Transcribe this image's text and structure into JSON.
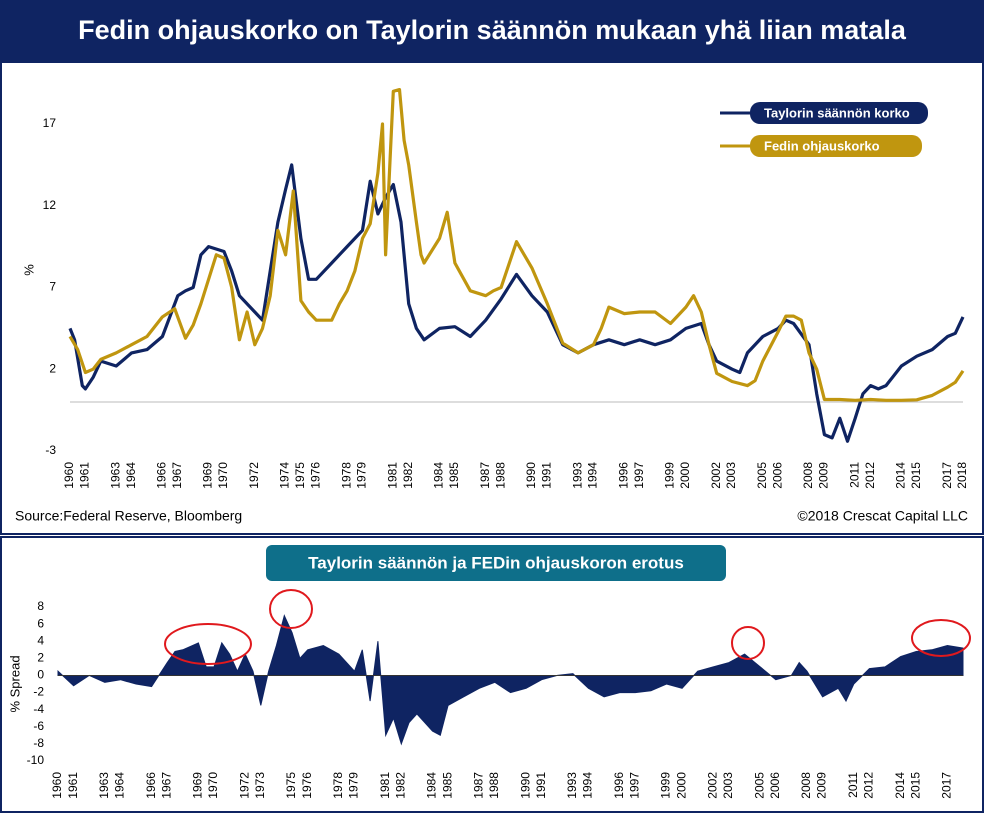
{
  "chart_data": [
    {
      "type": "line",
      "title": "Fedin ohjauskorko on Taylorin säännön mukaan yhä liian matala",
      "ylabel": "%",
      "source": "Source:Federal Reserve,  Bloomberg",
      "credit": "©2018 Crescat Capital LLC",
      "xlim": [
        1960,
        2018
      ],
      "xticks": [
        1960,
        1961,
        1963,
        1964,
        1966,
        1967,
        1969,
        1970,
        1972,
        1974,
        1975,
        1976,
        1978,
        1979,
        1981,
        1982,
        1984,
        1985,
        1987,
        1988,
        1990,
        1991,
        1993,
        1994,
        1996,
        1997,
        1999,
        2000,
        2002,
        2003,
        2005,
        2006,
        2008,
        2009,
        2011,
        2012,
        2014,
        2015,
        2017,
        2018
      ],
      "ylim": [
        -3,
        19.2
      ],
      "yticks": [
        -3,
        2,
        7,
        12,
        17
      ],
      "legend": "top-right",
      "series": [
        {
          "name": "Taylorin säännön korko",
          "color": "#0f2462",
          "x": [
            1960,
            1960.3,
            1960.8,
            1961,
            1961.5,
            1962,
            1963,
            1964,
            1965,
            1966,
            1967,
            1967.5,
            1968,
            1968.5,
            1969,
            1970,
            1970.5,
            1971,
            1972,
            1972.5,
            1973,
            1973.5,
            1974,
            1974.4,
            1975,
            1975.5,
            1976,
            1977,
            1978,
            1979,
            1979.5,
            1980,
            1980.5,
            1981,
            1981.5,
            1982,
            1982.5,
            1983,
            1984,
            1985,
            1986,
            1987,
            1988,
            1989,
            1990,
            1991,
            1992,
            1993,
            1994,
            1995,
            1996,
            1997,
            1998,
            1999,
            2000,
            2001,
            2001.5,
            2002,
            2003,
            2003.5,
            2004,
            2005,
            2006,
            2006.5,
            2007,
            2008,
            2008.5,
            2009,
            2009.5,
            2010,
            2010.5,
            2011,
            2011.5,
            2012,
            2012.5,
            2013,
            2014,
            2015,
            2016,
            2017,
            2017.5,
            2018
          ],
          "values": [
            4.5,
            3.8,
            1.0,
            0.8,
            1.5,
            2.5,
            2.2,
            3.0,
            3.2,
            4.0,
            6.5,
            6.8,
            7.0,
            9.0,
            9.5,
            9.2,
            8.0,
            6.5,
            5.5,
            5.0,
            8.0,
            11.0,
            13.0,
            14.5,
            10.0,
            7.5,
            7.5,
            8.5,
            9.5,
            10.5,
            13.5,
            11.5,
            12.5,
            13.3,
            11.0,
            6.0,
            4.5,
            3.8,
            4.5,
            4.6,
            4.0,
            5.0,
            6.3,
            7.8,
            6.5,
            5.5,
            3.5,
            3.0,
            3.5,
            3.8,
            3.5,
            3.8,
            3.5,
            3.8,
            4.5,
            4.8,
            3.5,
            2.5,
            2.0,
            1.8,
            3.0,
            4.0,
            4.5,
            5.0,
            4.8,
            3.5,
            0.5,
            -2.0,
            -2.2,
            -1.0,
            -2.4,
            -1.0,
            0.5,
            1.0,
            0.8,
            1.0,
            2.2,
            2.8,
            3.2,
            4.0,
            4.2,
            5.2
          ]
        },
        {
          "name": "Fedin ohjauskorko",
          "color": "#c0960f",
          "x": [
            1960,
            1960.5,
            1961,
            1961.5,
            1962,
            1963,
            1964,
            1965,
            1966,
            1966.8,
            1967.5,
            1968,
            1968.5,
            1969.5,
            1970,
            1970.5,
            1971,
            1971.5,
            1972,
            1972.5,
            1973,
            1973.5,
            1974,
            1974.5,
            1975,
            1975.5,
            1976,
            1977,
            1977.5,
            1978,
            1978.5,
            1979,
            1979.5,
            1980,
            1980.3,
            1980.5,
            1980.8,
            1981,
            1981.4,
            1981.7,
            1982,
            1982.5,
            1982.8,
            1983,
            1984,
            1984.5,
            1985,
            1986,
            1987,
            1987.5,
            1988,
            1989,
            1989.5,
            1990,
            1991,
            1992,
            1993,
            1994,
            1994.5,
            1995,
            1996,
            1997,
            1998,
            1999,
            2000,
            2000.5,
            2001,
            2001.5,
            2002,
            2003,
            2004,
            2004.5,
            2005,
            2006,
            2006.5,
            2007,
            2007.5,
            2008,
            2008.5,
            2009,
            2010,
            2011,
            2012,
            2013,
            2014,
            2015,
            2016,
            2017,
            2017.5,
            2018
          ],
          "values": [
            4.0,
            3.2,
            1.8,
            2.0,
            2.6,
            3.0,
            3.5,
            4.0,
            5.2,
            5.7,
            3.9,
            4.7,
            6.0,
            9.0,
            8.8,
            7.0,
            3.8,
            5.5,
            3.5,
            4.5,
            6.5,
            10.5,
            9.0,
            12.9,
            6.2,
            5.5,
            5.0,
            5.0,
            6.0,
            6.8,
            8.0,
            10.0,
            10.9,
            14.0,
            17.0,
            9.0,
            15.0,
            19.0,
            19.1,
            16.0,
            14.5,
            11.0,
            9.0,
            8.5,
            10.0,
            11.6,
            8.5,
            6.8,
            6.5,
            6.8,
            7.0,
            9.8,
            9.0,
            8.2,
            6.0,
            3.6,
            3.0,
            3.5,
            4.5,
            5.8,
            5.4,
            5.5,
            5.5,
            4.8,
            5.8,
            6.5,
            5.5,
            3.5,
            1.75,
            1.25,
            1.0,
            1.3,
            2.5,
            4.3,
            5.25,
            5.25,
            5.0,
            3.0,
            2.0,
            0.15,
            0.15,
            0.1,
            0.15,
            0.1,
            0.1,
            0.13,
            0.4,
            0.9,
            1.2,
            1.9
          ]
        }
      ]
    },
    {
      "type": "area",
      "title": "Taylorin säännön ja FEDin ohjauskoron erotus",
      "ylabel": "% Spread",
      "color": "#0f2462",
      "xlim": [
        1960,
        2018
      ],
      "xticks": [
        1960,
        1961,
        1963,
        1964,
        1966,
        1967,
        1969,
        1970,
        1972,
        1973,
        1975,
        1976,
        1978,
        1979,
        1981,
        1982,
        1984,
        1985,
        1987,
        1988,
        1990,
        1991,
        1993,
        1994,
        1996,
        1997,
        1999,
        2000,
        2002,
        2003,
        2005,
        2006,
        2008,
        2009,
        2011,
        2012,
        2014,
        2015,
        2017
      ],
      "ylim": [
        -10,
        8
      ],
      "yticks": [
        -10,
        -8,
        -6,
        -4,
        -2,
        0,
        2,
        4,
        6,
        8
      ],
      "x": [
        1960,
        1961,
        1962,
        1963,
        1964,
        1965,
        1966,
        1967,
        1967.5,
        1968,
        1969,
        1969.5,
        1970,
        1970.5,
        1971,
        1971.5,
        1972,
        1972.5,
        1973,
        1973.5,
        1974,
        1974.5,
        1975,
        1975.5,
        1976,
        1977,
        1978,
        1979,
        1979.5,
        1980,
        1980.5,
        1981,
        1981.5,
        1982,
        1982.5,
        1983,
        1984,
        1984.5,
        1985,
        1986,
        1987,
        1988,
        1989,
        1990,
        1991,
        1992,
        1993,
        1994,
        1995,
        1996,
        1997,
        1998,
        1999,
        2000,
        2001,
        2002,
        2003,
        2004,
        2005,
        2006,
        2007,
        2007.5,
        2008,
        2009,
        2010,
        2010.5,
        2011,
        2012,
        2013,
        2014,
        2015,
        2016,
        2017,
        2018
      ],
      "values": [
        0.5,
        -1.2,
        0,
        -0.8,
        -0.5,
        -1.0,
        -1.3,
        1.5,
        2.8,
        3.0,
        3.8,
        1.0,
        1.0,
        3.8,
        2.5,
        0.5,
        2.5,
        0.5,
        -3.5,
        0.5,
        3.5,
        7.0,
        5.0,
        2.0,
        3.0,
        3.5,
        2.5,
        0.5,
        3.0,
        -3.0,
        4.0,
        -7.0,
        -5.0,
        -8.0,
        -5.5,
        -4.5,
        -6.5,
        -7.0,
        -3.5,
        -2.5,
        -1.5,
        -0.8,
        -2.0,
        -1.5,
        -0.5,
        0,
        0.2,
        -1.5,
        -2.5,
        -2.0,
        -2.0,
        -1.8,
        -1.0,
        -1.5,
        0.5,
        1.0,
        1.5,
        2.5,
        1.0,
        -0.5,
        0,
        1.5,
        0.5,
        -2.5,
        -1.5,
        -3.0,
        -1.0,
        0.8,
        1.0,
        2.2,
        2.8,
        3.0,
        3.5,
        3.2
      ]
    }
  ]
}
